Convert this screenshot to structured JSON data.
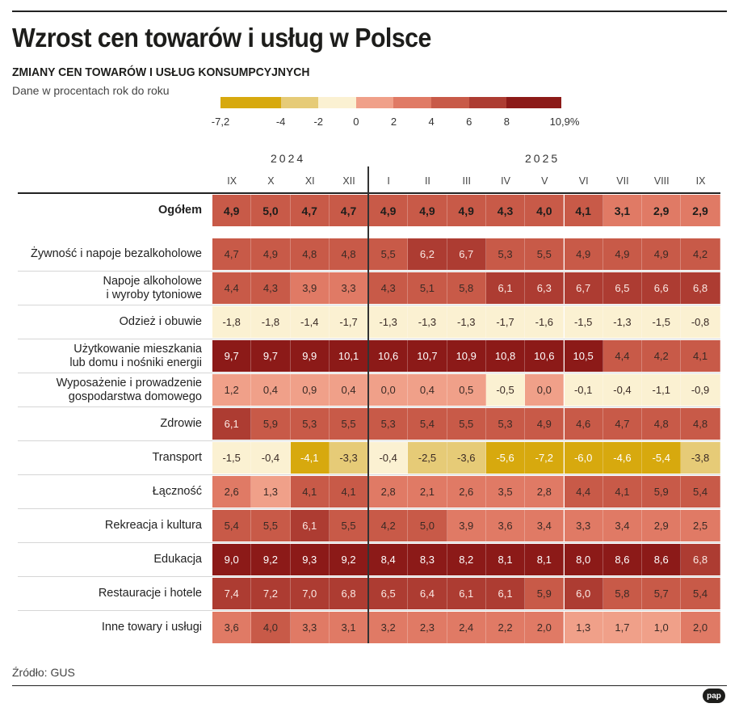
{
  "header": {
    "title": "Wzrost cen towarów i usług w Polsce",
    "subtitle": "ZMIANY CEN TOWARÓW I USŁUG KONSUMPCYJNYCH",
    "unit_note": "Dane w procentach rok do roku"
  },
  "legend": {
    "bins": [
      {
        "from": -7.2,
        "to": -4,
        "color": "#d7a90e"
      },
      {
        "from": -4,
        "to": -2,
        "color": "#e6cb77"
      },
      {
        "from": -2,
        "to": 0,
        "color": "#fbf1d2"
      },
      {
        "from": 0,
        "to": 2,
        "color": "#f0a089"
      },
      {
        "from": 2,
        "to": 4,
        "color": "#e07a65"
      },
      {
        "from": 4,
        "to": 6,
        "color": "#c85a48"
      },
      {
        "from": 6,
        "to": 8,
        "color": "#ad3c32"
      },
      {
        "from": 8,
        "to": 10.9,
        "color": "#8c1a18"
      }
    ],
    "ticks": [
      "-7,2",
      "-4",
      "-2",
      "0",
      "2",
      "4",
      "6",
      "8",
      "10,9%"
    ]
  },
  "chart_data": {
    "type": "heatmap",
    "title": "Wzrost cen towarów i usług w Polsce",
    "subtitle": "ZMIANY CEN TOWARÓW I USŁUG KONSUMPCYJNYCH",
    "ylabel": "Dane w procentach rok do roku",
    "years": [
      {
        "label": "2024",
        "months": 4
      },
      {
        "label": "2025",
        "months": 9
      }
    ],
    "columns": [
      "IX",
      "X",
      "XI",
      "XII",
      "I",
      "II",
      "III",
      "IV",
      "V",
      "VI",
      "VII",
      "VIII",
      "IX"
    ],
    "rows": [
      {
        "label": "Ogółem",
        "bold": true,
        "values": [
          "4,9",
          "5,0",
          "4,7",
          "4,7",
          "4,9",
          "4,9",
          "4,9",
          "4,3",
          "4,0",
          "4,1",
          "3,1",
          "2,9",
          "2,9"
        ]
      },
      {
        "label": "Żywność i napoje bezalkoholowe",
        "values": [
          "4,7",
          "4,9",
          "4,8",
          "4,8",
          "5,5",
          "6,2",
          "6,7",
          "5,3",
          "5,5",
          "4,9",
          "4,9",
          "4,9",
          "4,2"
        ]
      },
      {
        "label": "Napoje alkoholowe\ni wyroby tytoniowe",
        "values": [
          "4,4",
          "4,3",
          "3,9",
          "3,3",
          "4,3",
          "5,1",
          "5,8",
          "6,1",
          "6,3",
          "6,7",
          "6,5",
          "6,6",
          "6,8"
        ]
      },
      {
        "label": "Odzież i obuwie",
        "values": [
          "-1,8",
          "-1,8",
          "-1,4",
          "-1,7",
          "-1,3",
          "-1,3",
          "-1,3",
          "-1,7",
          "-1,6",
          "-1,5",
          "-1,3",
          "-1,5",
          "-0,8"
        ]
      },
      {
        "label": "Użytkowanie mieszkania\nlub domu i nośniki energii",
        "values": [
          "9,7",
          "9,7",
          "9,9",
          "10,1",
          "10,6",
          "10,7",
          "10,9",
          "10,8",
          "10,6",
          "10,5",
          "4,4",
          "4,2",
          "4,1"
        ]
      },
      {
        "label": "Wyposażenie i prowadzenie\ngospodarstwa domowego",
        "values": [
          "1,2",
          "0,4",
          "0,9",
          "0,4",
          "0,0",
          "0,4",
          "0,5",
          "-0,5",
          "0,0",
          "-0,1",
          "-0,4",
          "-1,1",
          "-0,9"
        ]
      },
      {
        "label": "Zdrowie",
        "values": [
          "6,1",
          "5,9",
          "5,3",
          "5,5",
          "5,3",
          "5,4",
          "5,5",
          "5,3",
          "4,9",
          "4,6",
          "4,7",
          "4,8",
          "4,8"
        ]
      },
      {
        "label": "Transport",
        "values": [
          "-1,5",
          "-0,4",
          "-4,1",
          "-3,3",
          "-0,4",
          "-2,5",
          "-3,6",
          "-5,6",
          "-7,2",
          "-6,0",
          "-4,6",
          "-5,4",
          "-3,8"
        ]
      },
      {
        "label": "Łączność",
        "values": [
          "2,6",
          "1,3",
          "4,1",
          "4,1",
          "2,8",
          "2,1",
          "2,6",
          "3,5",
          "2,8",
          "4,4",
          "4,1",
          "5,9",
          "5,4"
        ]
      },
      {
        "label": "Rekreacja i kultura",
        "values": [
          "5,4",
          "5,5",
          "6,1",
          "5,5",
          "4,2",
          "5,0",
          "3,9",
          "3,6",
          "3,4",
          "3,3",
          "3,4",
          "2,9",
          "2,5"
        ]
      },
      {
        "label": "Edukacja",
        "values": [
          "9,0",
          "9,2",
          "9,3",
          "9,2",
          "8,4",
          "8,3",
          "8,2",
          "8,1",
          "8,1",
          "8,0",
          "8,6",
          "8,6",
          "6,8"
        ]
      },
      {
        "label": "Restauracje i hotele",
        "values": [
          "7,4",
          "7,2",
          "7,0",
          "6,8",
          "6,5",
          "6,4",
          "6,1",
          "6,1",
          "5,9",
          "6,0",
          "5,8",
          "5,7",
          "5,4"
        ]
      },
      {
        "label": "Inne towary i usługi",
        "values": [
          "3,6",
          "4,0",
          "3,3",
          "3,1",
          "3,2",
          "2,3",
          "2,4",
          "2,2",
          "2,0",
          "1,3",
          "1,7",
          "1,0",
          "2,0"
        ]
      }
    ]
  },
  "footer": {
    "source": "Źródło: GUS",
    "logo_text": "pap"
  }
}
